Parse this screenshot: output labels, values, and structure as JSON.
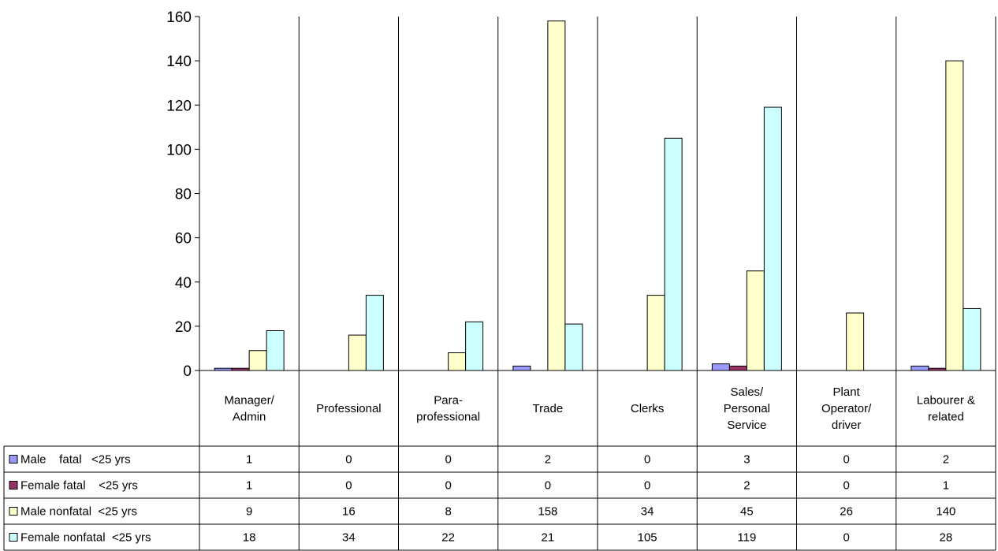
{
  "chart_data": {
    "type": "bar",
    "title": "",
    "xlabel": "",
    "ylabel": "",
    "ylim": [
      0,
      160
    ],
    "yticks": [
      0,
      20,
      40,
      60,
      80,
      100,
      120,
      140,
      160
    ],
    "grid": false,
    "legend_placement": "data-table-left",
    "categories": [
      [
        "Manager/",
        "Admin"
      ],
      [
        "Professional"
      ],
      [
        "Para-",
        "professional"
      ],
      [
        "Trade"
      ],
      [
        "Clerks"
      ],
      [
        "Sales/",
        "Personal",
        "Service"
      ],
      [
        "Plant",
        "Operator/",
        "driver"
      ],
      [
        "Labourer &",
        "related"
      ]
    ],
    "series": [
      {
        "name": "Male    fatal   <25 yrs",
        "color": "#9999ff",
        "values": [
          1,
          0,
          0,
          2,
          0,
          3,
          0,
          2
        ]
      },
      {
        "name": "Female fatal    <25 yrs",
        "color": "#993366",
        "values": [
          1,
          0,
          0,
          0,
          0,
          2,
          0,
          1
        ]
      },
      {
        "name": "Male nonfatal  <25 yrs",
        "color": "#ffffcc",
        "values": [
          9,
          16,
          8,
          158,
          34,
          45,
          26,
          140
        ]
      },
      {
        "name": "Female nonfatal  <25 yrs",
        "color": "#ccffff",
        "values": [
          18,
          34,
          22,
          21,
          105,
          119,
          0,
          28
        ]
      }
    ]
  }
}
